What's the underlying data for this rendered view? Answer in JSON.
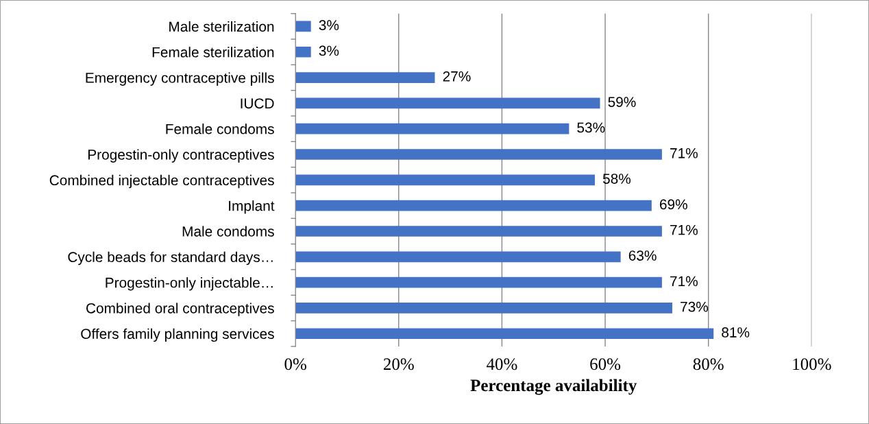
{
  "chart_data": {
    "type": "bar",
    "orientation": "horizontal",
    "xlabel": "Percentage availability",
    "categories": [
      "Male sterilization",
      "Female sterilization",
      "Emergency contraceptive pills",
      "IUCD",
      "Female condoms",
      "Progestin-only contraceptives",
      "Combined injectable contraceptives",
      "Implant",
      "Male condoms",
      "Cycle beads for standard days…",
      "Progestin-only injectable…",
      "Combined oral contraceptives",
      "Offers family planning services"
    ],
    "values": [
      3,
      3,
      27,
      59,
      53,
      71,
      58,
      69,
      71,
      63,
      71,
      73,
      81
    ],
    "value_labels": [
      "3%",
      "3%",
      "27%",
      "59%",
      "53%",
      "71%",
      "58%",
      "69%",
      "71%",
      "63%",
      "71%",
      "73%",
      "81%"
    ],
    "color": "#4472c4",
    "xlim": [
      0,
      100
    ],
    "xticks": [
      {
        "value": 0,
        "label": "0%"
      },
      {
        "value": 20,
        "label": "20%"
      },
      {
        "value": 40,
        "label": "40%"
      },
      {
        "value": 60,
        "label": "60%"
      },
      {
        "value": 80,
        "label": "80%"
      },
      {
        "value": 100,
        "label": "100%"
      }
    ],
    "grid": "x",
    "legend": false
  }
}
